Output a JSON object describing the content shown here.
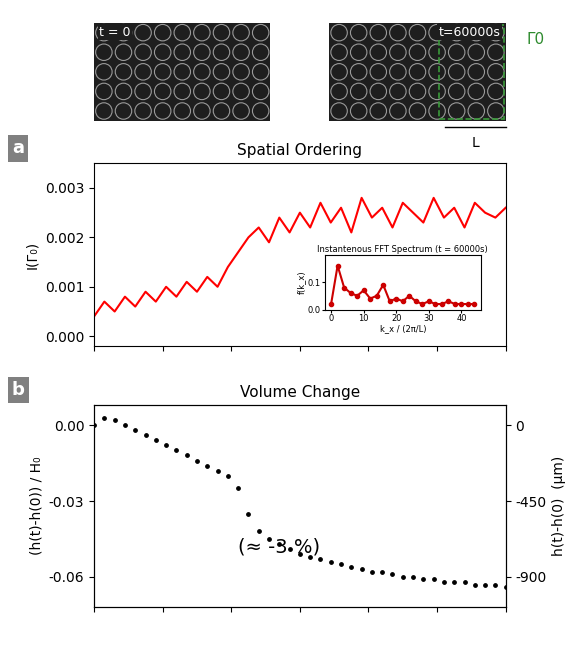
{
  "chart_data": [
    {
      "type": "line",
      "panel": "a",
      "title": "Spatial Ordering",
      "y_label": "I(Γ₀)",
      "color": "#ff0000",
      "tick_labels": "y",
      "x": [
        0,
        1500,
        3000,
        4500,
        6000,
        7500,
        9000,
        10500,
        12000,
        13500,
        15000,
        16500,
        18000,
        19500,
        21000,
        22500,
        24000,
        25500,
        27000,
        28500,
        30000,
        31500,
        33000,
        34500,
        36000,
        37500,
        39000,
        40500,
        42000,
        43500,
        45000,
        46500,
        48000,
        49500,
        51000,
        52500,
        54000,
        55500,
        57000,
        58500,
        60000
      ],
      "values": [
        0.0004,
        0.0007,
        0.0005,
        0.0008,
        0.0006,
        0.0009,
        0.0007,
        0.001,
        0.0008,
        0.0011,
        0.0009,
        0.0012,
        0.001,
        0.0014,
        0.0017,
        0.002,
        0.0022,
        0.0019,
        0.0024,
        0.0021,
        0.0025,
        0.0022,
        0.0027,
        0.0023,
        0.0026,
        0.0021,
        0.0028,
        0.0024,
        0.0026,
        0.0022,
        0.0027,
        0.0025,
        0.0023,
        0.0028,
        0.0024,
        0.0026,
        0.0022,
        0.0027,
        0.0025,
        0.0024,
        0.0026
      ],
      "xlim": [
        0,
        60000
      ],
      "xticks": [
        0,
        10000,
        20000,
        30000,
        40000,
        50000,
        60000
      ],
      "ylim": [
        -0.0002,
        0.0035
      ],
      "yticks": [
        {
          "value": 0,
          "label": "0.000"
        },
        0.001,
        0.002,
        0.003
      ],
      "annotations": {
        "image_start": "t = 0",
        "image_end": "t=60000s",
        "region": "Γ0",
        "length": "L"
      },
      "inset": {
        "type": "line",
        "title": "Instantenous FFT Spectrum (t = 60000s)",
        "x_label": "k_x / (2π/L)",
        "y_label": "f(k_x)",
        "color": "#cc0000",
        "marker": "o",
        "x": [
          0,
          2,
          4,
          6,
          8,
          10,
          12,
          14,
          16,
          18,
          20,
          22,
          24,
          26,
          28,
          30,
          32,
          34,
          36,
          38,
          40,
          42,
          44
        ],
        "values": [
          0.02,
          0.16,
          0.08,
          0.06,
          0.05,
          0.07,
          0.04,
          0.05,
          0.09,
          0.03,
          0.04,
          0.03,
          0.05,
          0.03,
          0.02,
          0.03,
          0.02,
          0.02,
          0.03,
          0.02,
          0.02,
          0.02,
          0.02
        ],
        "xlim": [
          -2,
          46
        ],
        "xticks": [
          0,
          10,
          20,
          30,
          40
        ],
        "ylim": [
          0,
          0.2
        ],
        "yticks": [
          {
            "value": 0,
            "label": "0.0"
          },
          0.1
        ]
      }
    },
    {
      "type": "scatter",
      "panel": "b",
      "title": "Volume Change",
      "y_label": "(h(t)-h(0)) / H₀",
      "y2_label": "h(t)-h(0)  (μm)",
      "color": "#000000",
      "tick_labels": "y",
      "annotation": "(≈ -3 %)",
      "x": [
        0,
        1500,
        3000,
        4500,
        6000,
        7500,
        9000,
        10500,
        12000,
        13500,
        15000,
        16500,
        18000,
        19500,
        21000,
        22500,
        24000,
        25500,
        27000,
        28500,
        30000,
        31500,
        33000,
        34500,
        36000,
        37500,
        39000,
        40500,
        42000,
        43500,
        45000,
        46500,
        48000,
        49500,
        51000,
        52500,
        54000,
        55500,
        57000,
        58500,
        60000
      ],
      "values": [
        0.0,
        0.003,
        0.002,
        0.0,
        -0.002,
        -0.004,
        -0.006,
        -0.008,
        -0.01,
        -0.012,
        -0.014,
        -0.016,
        -0.018,
        -0.02,
        -0.025,
        -0.035,
        -0.042,
        -0.045,
        -0.047,
        -0.049,
        -0.051,
        -0.052,
        -0.053,
        -0.054,
        -0.055,
        -0.056,
        -0.057,
        -0.058,
        -0.058,
        -0.059,
        -0.06,
        -0.06,
        -0.061,
        -0.061,
        -0.062,
        -0.062,
        -0.062,
        -0.063,
        -0.063,
        -0.063,
        -0.064
      ],
      "xlim": [
        0,
        60000
      ],
      "xticks": [
        0,
        10000,
        20000,
        30000,
        40000,
        50000,
        60000
      ],
      "ylim": [
        -0.072,
        0.008
      ],
      "yticks": [
        {
          "value": 0,
          "label": "0.00"
        },
        -0.03,
        -0.06
      ],
      "y2lim": [
        -1080,
        120
      ],
      "y2ticks": [
        0,
        -450,
        -900
      ]
    }
  ]
}
